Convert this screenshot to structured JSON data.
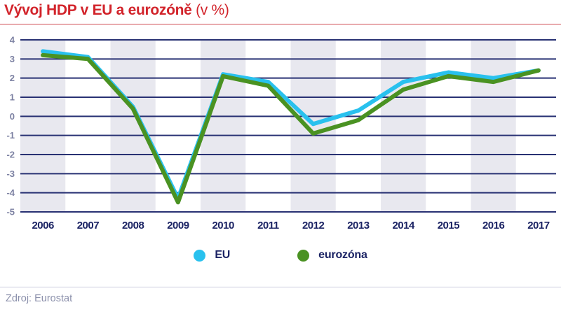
{
  "header": {
    "title_bold": "Vývoj HDP v EU a eurozóně",
    "title_suffix": " (v %)"
  },
  "chart_data": {
    "type": "line",
    "title": "Vývoj HDP v EU a eurozóně (v %)",
    "categories": [
      "2006",
      "2007",
      "2008",
      "2009",
      "2010",
      "2011",
      "2012",
      "2013",
      "2014",
      "2015",
      "2016",
      "2017"
    ],
    "series": [
      {
        "name": "EU",
        "color": "#29c1ee",
        "values": [
          3.4,
          3.1,
          0.5,
          -4.3,
          2.2,
          1.8,
          -0.4,
          0.3,
          1.8,
          2.3,
          2.0,
          2.4
        ]
      },
      {
        "name": "eurozóna",
        "color": "#4a9222",
        "values": [
          3.2,
          3.0,
          0.4,
          -4.5,
          2.1,
          1.6,
          -0.9,
          -0.2,
          1.4,
          2.1,
          1.8,
          2.4
        ]
      }
    ],
    "xlabel": "",
    "ylabel": "",
    "ylim": [
      -5,
      4
    ],
    "yticks": [
      4,
      3,
      2,
      1,
      0,
      -1,
      -2,
      -3,
      -4,
      -5
    ],
    "grid": "horizontal",
    "alternating_bands": true,
    "band_color": "#e8e8ef",
    "gridline_color": "#283173",
    "xtick_color": "#1b2364",
    "ytick_color": "#7c81a2",
    "line_width": 6,
    "legend_position": "bottom"
  },
  "legend": {
    "items": [
      {
        "label": "EU",
        "color": "#29c1ee"
      },
      {
        "label": "eurozóna",
        "color": "#4a9222"
      }
    ]
  },
  "footer": {
    "source": "Zdroj: Eurostat"
  },
  "colors": {
    "title_text": "#d2232a",
    "title_divider": "#cf4a51",
    "footer_divider": "#c9cbdd",
    "source_text": "#8b90ab"
  }
}
